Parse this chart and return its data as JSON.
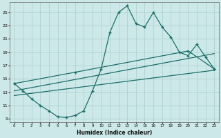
{
  "xlabel": "Humidex (Indice chaleur)",
  "bg_color": "#cce8e8",
  "grid_color": "#aacece",
  "line_color": "#1a6e6a",
  "xlim": [
    -0.5,
    23.5
  ],
  "ylim": [
    8.5,
    26.5
  ],
  "xticks": [
    0,
    1,
    2,
    3,
    4,
    5,
    6,
    7,
    8,
    9,
    10,
    11,
    12,
    13,
    14,
    15,
    16,
    17,
    18,
    19,
    20,
    21,
    22,
    23
  ],
  "yticks": [
    9,
    11,
    13,
    15,
    17,
    19,
    21,
    23,
    25
  ],
  "line1_x": [
    0,
    1,
    2,
    3,
    4,
    5,
    6,
    7,
    8,
    9,
    10,
    11,
    12,
    13,
    14,
    15,
    16,
    17,
    18,
    19,
    20,
    21,
    22,
    23
  ],
  "line1_y": [
    14.3,
    13.2,
    12.0,
    11.0,
    10.2,
    9.3,
    9.2,
    9.5,
    10.2,
    13.2,
    16.5,
    22.0,
    25.0,
    26.0,
    23.3,
    22.8,
    25.0,
    22.8,
    21.3,
    19.0,
    18.5,
    20.2,
    18.3,
    16.5
  ],
  "line2_x": [
    0,
    7,
    20,
    23
  ],
  "line2_y": [
    14.3,
    16.0,
    19.2,
    16.5
  ],
  "line3_x": [
    0,
    23
  ],
  "line3_y": [
    13.2,
    18.8
  ],
  "line4_x": [
    0,
    23
  ],
  "line4_y": [
    12.5,
    16.3
  ]
}
